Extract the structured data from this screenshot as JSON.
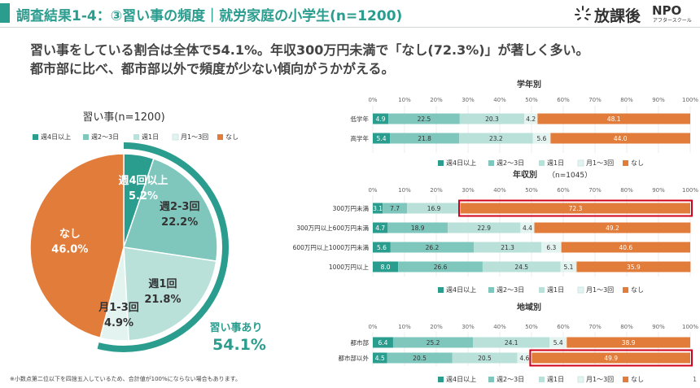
{
  "header": {
    "title": "調査結果1-4：③習い事の頻度｜就労家庭の小学生(n=1200)",
    "logo_text": "放課後",
    "logo_npo": "NPO",
    "logo_sub": "アフタースクール",
    "accent_color": "#2a9d8f"
  },
  "lead": {
    "line1": "習い事をしている割合は全体で54.1%。年収300万円未満で「なし(72.3%)」が著しく多い。",
    "line2": "都市部に比べ、都市部以外で頻度が少ない傾向がうかがえる。"
  },
  "colors": {
    "c1": "#2a9d8f",
    "c2": "#7fc7bd",
    "c3": "#b9e1da",
    "c4": "#e2f3f0",
    "c5": "#e27c3a",
    "highlight": "#d0021b"
  },
  "legend_labels": [
    "週4日以上",
    "週2〜3日",
    "週1日",
    "月1〜3回",
    "なし"
  ],
  "footnote": "※小数点第二位以下を四捨五入しているため、合計値が100%にならない場合もあります。",
  "page_number": "1",
  "chart_data": [
    {
      "type": "pie",
      "title": "習い事(n=1200)",
      "categories": [
        "週4日以上",
        "週2〜3日",
        "週1日",
        "月1〜3回",
        "なし"
      ],
      "values": [
        5.2,
        22.2,
        21.8,
        4.9,
        46.0
      ],
      "slice_labels": [
        "週4回以上",
        "週2-3回",
        "週1回",
        "月1-3回",
        "なし"
      ],
      "value_labels": [
        "5.2%",
        "22.2%",
        "21.8%",
        "4.9%",
        "46.0%"
      ],
      "annotation_label": "習い事あり",
      "annotation_value": "54.1%"
    },
    {
      "type": "bar",
      "orientation": "horizontal",
      "stacked": true,
      "title": "学年別",
      "subtitle": "",
      "x_ticks": [
        "0%",
        "10%",
        "20%",
        "30%",
        "40%",
        "50%",
        "60%",
        "70%",
        "80%",
        "90%",
        "100%"
      ],
      "xlim": [
        0,
        100
      ],
      "categories": [
        "低学年",
        "高学年"
      ],
      "series": [
        {
          "name": "週4日以上",
          "values": [
            4.9,
            5.4
          ]
        },
        {
          "name": "週2〜3日",
          "values": [
            22.5,
            21.8
          ]
        },
        {
          "name": "週1日",
          "values": [
            20.3,
            23.2
          ]
        },
        {
          "name": "月1〜3回",
          "values": [
            4.2,
            5.6
          ]
        },
        {
          "name": "なし",
          "values": [
            48.1,
            44.0
          ]
        }
      ],
      "value_labels": [
        [
          "4.9",
          "22.5",
          "20.3",
          "4.2",
          "48.1"
        ],
        [
          "5.4",
          "21.8",
          "23.2",
          "5.6",
          "44.0"
        ]
      ],
      "highlight": []
    },
    {
      "type": "bar",
      "orientation": "horizontal",
      "stacked": true,
      "title": "年収別",
      "subtitle": "（n=1045）",
      "x_ticks": [
        "0%",
        "10%",
        "20%",
        "30%",
        "40%",
        "50%",
        "60%",
        "70%",
        "80%",
        "90%",
        "100%"
      ],
      "xlim": [
        0,
        100
      ],
      "categories": [
        "300万円未満",
        "300万円以上600万円未満",
        "600万円以上1000万円未満",
        "1000万円以上"
      ],
      "series": [
        {
          "name": "週4日以上",
          "values": [
            3.1,
            4.7,
            5.6,
            8.0
          ]
        },
        {
          "name": "週2〜3日",
          "values": [
            7.7,
            18.9,
            26.2,
            26.6
          ]
        },
        {
          "name": "週1日",
          "values": [
            16.9,
            22.9,
            21.3,
            24.5
          ]
        },
        {
          "name": "月1〜3回",
          "values": [
            0,
            4.4,
            6.3,
            5.1
          ]
        },
        {
          "name": "なし",
          "values": [
            72.3,
            49.2,
            40.6,
            35.9
          ]
        }
      ],
      "value_labels": [
        [
          "3.1",
          "7.7",
          "16.9",
          "",
          "72.3"
        ],
        [
          "4.7",
          "18.9",
          "22.9",
          "4.4",
          "49.2"
        ],
        [
          "5.6",
          "26.2",
          "21.3",
          "6.3",
          "40.6"
        ],
        [
          "8.0",
          "26.6",
          "24.5",
          "5.1",
          "35.9"
        ]
      ],
      "highlight": [
        0
      ]
    },
    {
      "type": "bar",
      "orientation": "horizontal",
      "stacked": true,
      "title": "地域別",
      "subtitle": "",
      "x_ticks": [
        "0%",
        "10%",
        "20%",
        "30%",
        "40%",
        "50%",
        "60%",
        "70%",
        "80%",
        "90%",
        "100%"
      ],
      "xlim": [
        0,
        100
      ],
      "categories": [
        "都市部",
        "都市部以外"
      ],
      "series": [
        {
          "name": "週4日以上",
          "values": [
            6.4,
            4.5
          ]
        },
        {
          "name": "週2〜3日",
          "values": [
            25.2,
            20.5
          ]
        },
        {
          "name": "週1日",
          "values": [
            24.1,
            20.5
          ]
        },
        {
          "name": "月1〜3回",
          "values": [
            5.4,
            4.6
          ]
        },
        {
          "name": "なし",
          "values": [
            38.9,
            49.9
          ]
        }
      ],
      "value_labels": [
        [
          "6.4",
          "25.2",
          "24.1",
          "5.4",
          "38.9"
        ],
        [
          "4.5",
          "20.5",
          "20.5",
          "4.6",
          "49.9"
        ]
      ],
      "highlight": [
        1
      ]
    }
  ]
}
